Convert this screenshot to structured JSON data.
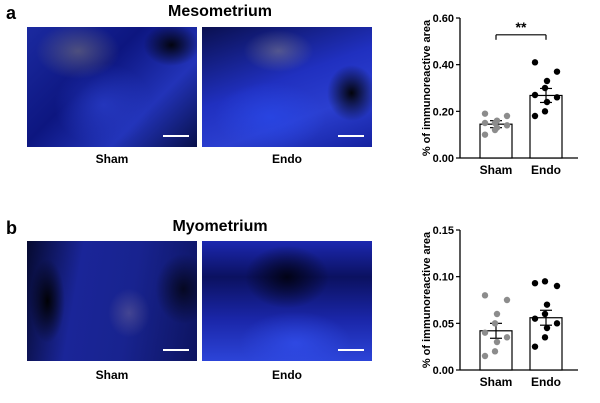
{
  "panels": [
    {
      "letter": "a",
      "title": "Mesometrium",
      "image_labels": [
        "Sham",
        "Endo"
      ]
    },
    {
      "letter": "b",
      "title": "Myometrium",
      "image_labels": [
        "Sham",
        "Endo"
      ]
    }
  ],
  "chart_data": [
    {
      "type": "bar",
      "categories": [
        "Sham",
        "Endo"
      ],
      "ylabel": "% of immunoreactive area",
      "ylim": [
        0,
        0.6
      ],
      "yticks": [
        "0.00",
        "0.20",
        "0.40",
        "0.60"
      ],
      "values": [
        0.145,
        0.268
      ],
      "sem": [
        0.015,
        0.03
      ],
      "points": [
        [
          0.1,
          0.12,
          0.13,
          0.14,
          0.15,
          0.15,
          0.16,
          0.18,
          0.19
        ],
        [
          0.18,
          0.2,
          0.24,
          0.26,
          0.27,
          0.3,
          0.33,
          0.37,
          0.41
        ]
      ],
      "point_colors": [
        "#8c8c8c",
        "#000000"
      ],
      "significance": "**"
    },
    {
      "type": "bar",
      "categories": [
        "Sham",
        "Endo"
      ],
      "ylabel": "% of immunoreactive area",
      "ylim": [
        0,
        0.15
      ],
      "yticks": [
        "0.00",
        "0.05",
        "0.10",
        "0.15"
      ],
      "values": [
        0.042,
        0.056
      ],
      "sem": [
        0.008,
        0.008
      ],
      "points": [
        [
          0.015,
          0.02,
          0.03,
          0.035,
          0.04,
          0.05,
          0.06,
          0.075,
          0.08
        ],
        [
          0.025,
          0.035,
          0.045,
          0.05,
          0.055,
          0.06,
          0.07,
          0.09,
          0.093,
          0.095
        ]
      ],
      "point_colors": [
        "#8c8c8c",
        "#000000"
      ],
      "significance": ""
    }
  ]
}
